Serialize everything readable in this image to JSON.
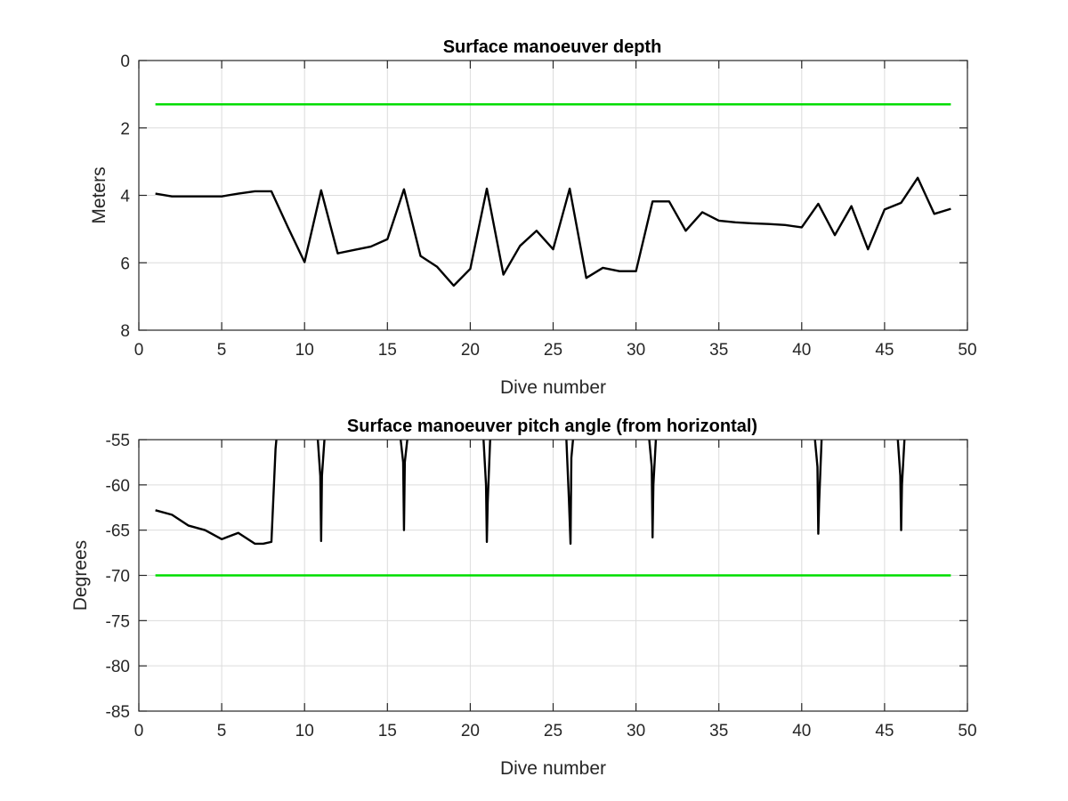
{
  "chart_data": [
    {
      "type": "line",
      "title": "Surface manoeuver depth",
      "xlabel": "Dive number",
      "ylabel": "Meters",
      "xlim": [
        0,
        50
      ],
      "ylim": [
        0,
        8
      ],
      "y_reversed": true,
      "grid": true,
      "xticks": [
        "0",
        "5",
        "10",
        "15",
        "20",
        "25",
        "30",
        "35",
        "40",
        "45",
        "50"
      ],
      "yticks": [
        "0",
        "2",
        "4",
        "6",
        "8"
      ],
      "series": [
        {
          "color": "#000000",
          "x": [
            1,
            2,
            3,
            4,
            5,
            6,
            7,
            8,
            9,
            10,
            11,
            12,
            13,
            14,
            15,
            16,
            17,
            18,
            19,
            20,
            21,
            22,
            23,
            24,
            25,
            26,
            27,
            28,
            29,
            30,
            31,
            32,
            33,
            34,
            35,
            36,
            37,
            38,
            39,
            40,
            41,
            42,
            43,
            44,
            45,
            46,
            47,
            48,
            49
          ],
          "values": [
            3.95,
            4.03,
            4.03,
            4.03,
            4.03,
            3.95,
            3.88,
            3.88,
            4.95,
            5.98,
            3.85,
            5.72,
            5.62,
            5.52,
            5.3,
            3.82,
            5.8,
            6.12,
            6.68,
            6.18,
            3.8,
            6.35,
            5.5,
            5.05,
            5.6,
            3.8,
            6.45,
            6.15,
            6.25,
            6.25,
            4.18,
            4.18,
            5.05,
            4.5,
            4.75,
            4.8,
            4.83,
            4.85,
            4.88,
            4.95,
            4.25,
            5.18,
            4.32,
            5.6,
            4.42,
            4.22,
            3.48,
            4.55,
            4.4
          ]
        },
        {
          "color": "#00dd00",
          "x": [
            1,
            49
          ],
          "values": [
            1.3,
            1.3
          ]
        }
      ]
    },
    {
      "type": "line",
      "title": "Surface manoeuver pitch angle (from horizontal)",
      "xlabel": "Dive number",
      "ylabel": "Degrees",
      "xlim": [
        0,
        50
      ],
      "ylim": [
        -85,
        -55
      ],
      "grid": true,
      "xticks": [
        "0",
        "5",
        "10",
        "15",
        "20",
        "25",
        "30",
        "35",
        "40",
        "45",
        "50"
      ],
      "yticks": [
        "-55",
        "-60",
        "-65",
        "-70",
        "-75",
        "-80",
        "-85"
      ],
      "series": [
        {
          "color": "#000000",
          "x": [
            1,
            2,
            3,
            4,
            5,
            6,
            7,
            7.5,
            8.0,
            8.25,
            8.3
          ],
          "values": [
            -62.8,
            -63.3,
            -64.5,
            -65.0,
            -66.0,
            -65.3,
            -66.5,
            -66.5,
            -66.3,
            -56.0,
            -55.0
          ]
        },
        {
          "color": "#000000",
          "x": [
            10.8,
            10.95,
            11.0,
            11.05,
            11.2
          ],
          "values": [
            -55.0,
            -59.0,
            -66.2,
            -59.0,
            -55.0
          ]
        },
        {
          "color": "#000000",
          "x": [
            15.8,
            15.95,
            16.0,
            16.05,
            16.2
          ],
          "values": [
            -55.0,
            -57.5,
            -65.0,
            -57.5,
            -55.0
          ]
        },
        {
          "color": "#000000",
          "x": [
            20.8,
            20.95,
            21.0,
            21.05,
            21.2
          ],
          "values": [
            -55.0,
            -60.0,
            -66.3,
            -62.0,
            -55.0
          ]
        },
        {
          "color": "#000000",
          "x": [
            25.8,
            25.95,
            26.05,
            26.1,
            26.2
          ],
          "values": [
            -55.0,
            -61.5,
            -66.5,
            -57.0,
            -55.0
          ]
        },
        {
          "color": "#000000",
          "x": [
            30.8,
            30.95,
            31.0,
            31.05,
            31.2
          ],
          "values": [
            -55.0,
            -58.0,
            -65.8,
            -60.0,
            -55.0
          ]
        },
        {
          "color": "#000000",
          "x": [
            40.8,
            40.95,
            41.0,
            41.05,
            41.2
          ],
          "values": [
            -55.0,
            -58.0,
            -65.4,
            -62.0,
            -55.0
          ]
        },
        {
          "color": "#000000",
          "x": [
            45.8,
            45.95,
            46.0,
            46.05,
            46.2
          ],
          "values": [
            -55.0,
            -59.0,
            -65.0,
            -60.0,
            -55.0
          ]
        },
        {
          "color": "#00dd00",
          "x": [
            1,
            49
          ],
          "values": [
            -70,
            -70
          ]
        }
      ]
    }
  ]
}
